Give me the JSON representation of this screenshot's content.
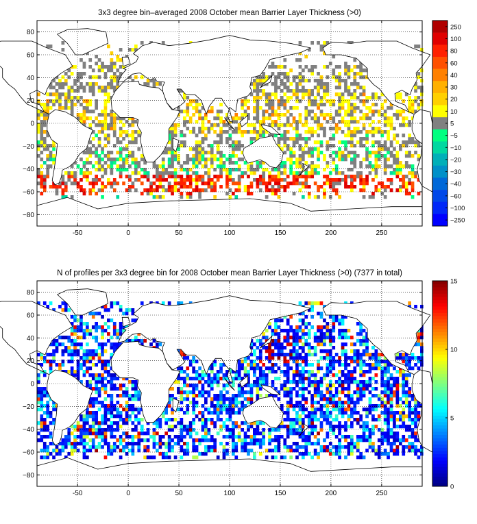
{
  "chart_data": [
    {
      "type": "heatmap",
      "title": "3x3 degree bin–averaged 2008 October mean Barrier Layer Thickness (>0)",
      "xlabel": "",
      "ylabel": "",
      "xlim": [
        -90,
        290
      ],
      "ylim": [
        -90,
        90
      ],
      "x_ticks": [
        "-50",
        "0",
        "50",
        "100",
        "150",
        "200",
        "250"
      ],
      "y_ticks": [
        "80",
        "60",
        "40",
        "20",
        "0",
        "−20",
        "−40",
        "−60",
        "−80"
      ],
      "grid": "dotted",
      "bin_size_deg": 3,
      "colorbar": {
        "ticks": [
          "250",
          "100",
          "80",
          "60",
          "40",
          "30",
          "20",
          "10",
          "5",
          "−5",
          "−10",
          "−20",
          "−30",
          "−40",
          "−60",
          "−100",
          "−250"
        ],
        "colors": [
          "#b00000",
          "#e00000",
          "#ff2000",
          "#ff5000",
          "#ff8000",
          "#ffb000",
          "#ffd000",
          "#ffff00",
          "#808080",
          "#00ff80",
          "#00d8a0",
          "#00b0b8",
          "#0090c8",
          "#0068d8",
          "#0048e8",
          "#0028f8",
          "#0000ff"
        ]
      }
    },
    {
      "type": "heatmap",
      "title": "N of profiles per 3x3 degree bin for 2008 October mean Barrier Layer Thickness (>0) (7377 in total)",
      "xlabel": "",
      "ylabel": "",
      "xlim": [
        -90,
        290
      ],
      "ylim": [
        -90,
        90
      ],
      "x_ticks": [
        "-50",
        "0",
        "50",
        "100",
        "150",
        "200",
        "250"
      ],
      "y_ticks": [
        "80",
        "60",
        "40",
        "20",
        "0",
        "−20",
        "−40",
        "−60",
        "−80"
      ],
      "grid": "dotted",
      "bin_size_deg": 3,
      "total_profiles": 7377,
      "colorbar": {
        "ticks": [
          "15",
          "10",
          "5",
          "0"
        ],
        "range": [
          0,
          15
        ],
        "colormap": "jet"
      }
    }
  ]
}
